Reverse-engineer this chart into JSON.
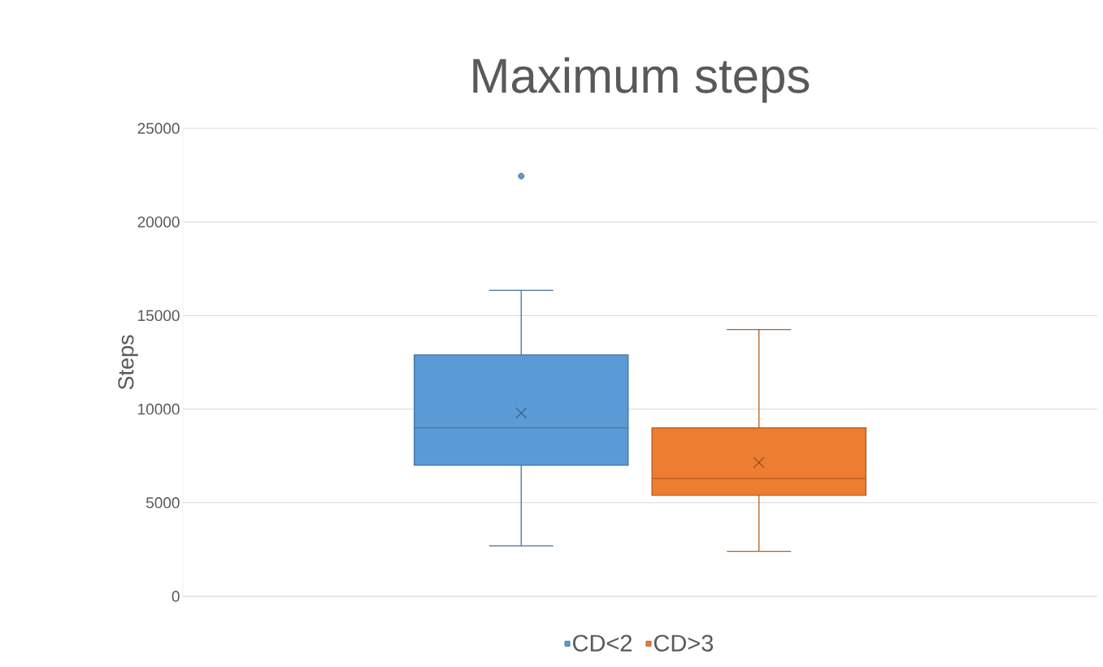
{
  "chart_data": {
    "type": "box",
    "title": "Maximum steps",
    "ylabel": "Steps",
    "categories": [
      null
    ],
    "ylim": [
      0,
      25000
    ],
    "yticks": [
      0,
      5000,
      10000,
      15000,
      20000,
      25000
    ],
    "grid": "y",
    "legend": "bottom",
    "series": [
      {
        "name": "CD<2",
        "color": "#5b9bd5",
        "boxes": [
          {
            "low": 2700,
            "q1": 7000,
            "median": 9000,
            "q3": 12900,
            "high": 16350,
            "mean": 9800,
            "outliers": [
              22450
            ]
          }
        ]
      },
      {
        "name": "CD>3",
        "color": "#ed7d31",
        "boxes": [
          {
            "low": 2400,
            "q1": 5400,
            "median": 6300,
            "q3": 9000,
            "high": 14250,
            "mean": 7150
          }
        ]
      }
    ]
  }
}
